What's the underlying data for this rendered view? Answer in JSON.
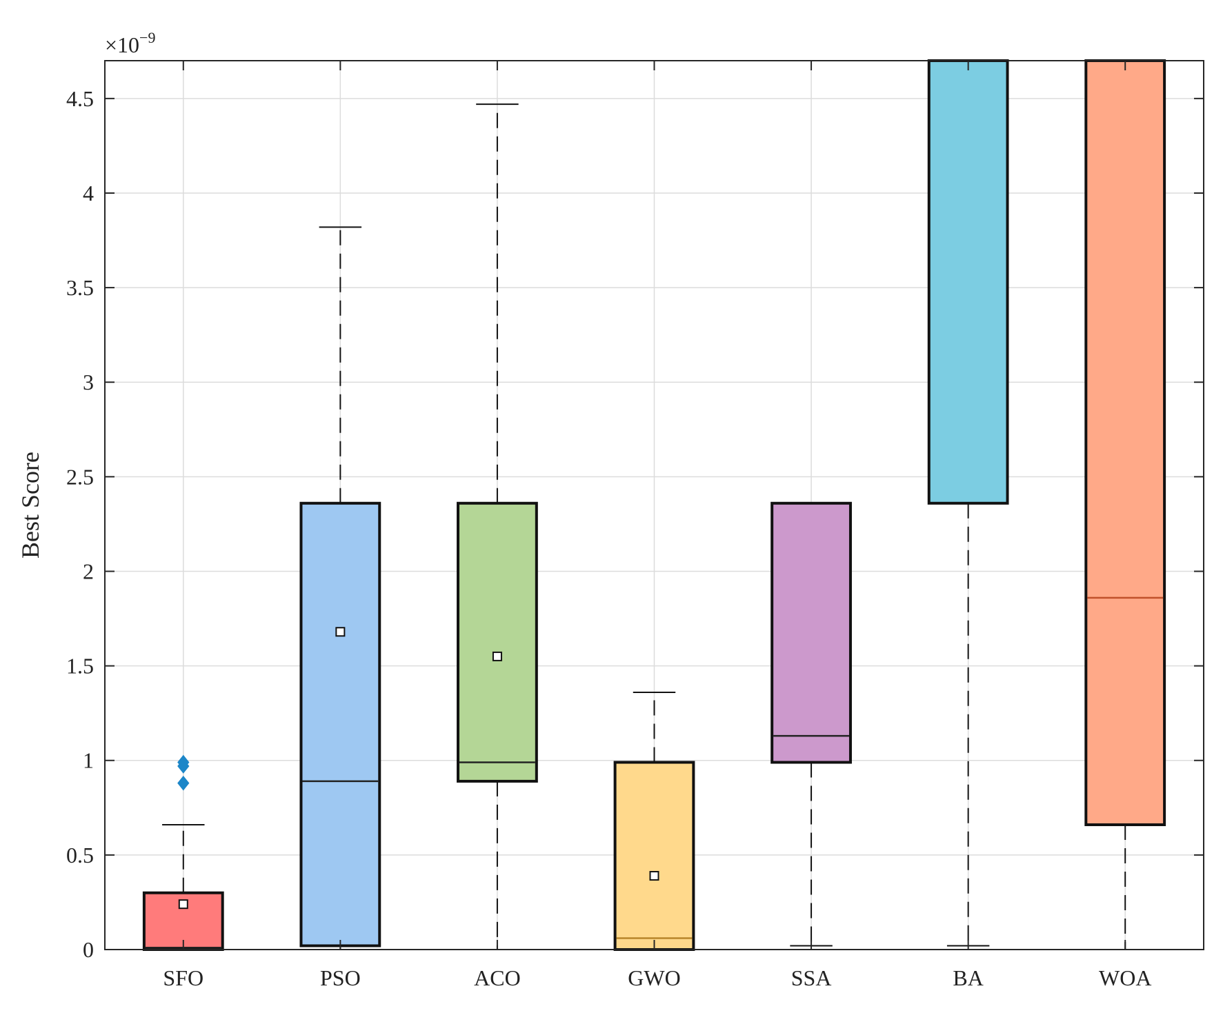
{
  "chart_data": {
    "type": "boxplot",
    "title": "",
    "xlabel": "",
    "ylabel": "Best Score",
    "y_multiplier_label": {
      "base": "×10",
      "exponent": "−9"
    },
    "ylim": [
      0,
      4.7
    ],
    "yticks": [
      0,
      0.5,
      1,
      1.5,
      2,
      2.5,
      3,
      3.5,
      4,
      4.5
    ],
    "ytick_labels": [
      "0",
      "0.5",
      "1",
      "1.5",
      "2",
      "2.5",
      "3",
      "3.5",
      "4",
      "4.5"
    ],
    "grid": true,
    "categories": [
      "SFO",
      "PSO",
      "ACO",
      "GWO",
      "SSA",
      "BA",
      "WOA"
    ],
    "boxes": [
      {
        "name": "SFO",
        "color": "#ff7b7b",
        "whisker_low": 0,
        "q1": 0,
        "median": 0.01,
        "q3": 0.3,
        "whisker_high": 0.66,
        "mean": 0.24,
        "outliers": [
          0.88,
          0.97,
          0.99
        ]
      },
      {
        "name": "PSO",
        "color": "#9ec8f2",
        "whisker_low": 0,
        "q1": 0.02,
        "median": 0.89,
        "q3": 2.36,
        "whisker_high": 3.82,
        "mean": 1.68,
        "outliers": []
      },
      {
        "name": "ACO",
        "color": "#b4d696",
        "whisker_low": 0,
        "q1": 0.89,
        "median": 0.99,
        "q3": 2.36,
        "whisker_high": 4.47,
        "mean": 1.55,
        "outliers": []
      },
      {
        "name": "GWO",
        "color": "#ffd98c",
        "whisker_low": 0,
        "q1": 0,
        "median": 0.06,
        "q3": 0.99,
        "whisker_high": 1.36,
        "mean": 0.39,
        "outliers": []
      },
      {
        "name": "SSA",
        "color": "#cc99cc",
        "whisker_low": 0.02,
        "q1": 0.99,
        "median": 1.13,
        "q3": 2.36,
        "whisker_high": null,
        "mean": null,
        "outliers": []
      },
      {
        "name": "BA",
        "color": "#7ccde2",
        "whisker_low": 0.02,
        "q1": 2.36,
        "median": null,
        "q3": 4.7,
        "whisker_high": null,
        "mean": null,
        "outliers": []
      },
      {
        "name": "WOA",
        "color": "#ffa988",
        "whisker_low": 0,
        "q1": 0.66,
        "median": 1.86,
        "q3": 4.7,
        "whisker_high": null,
        "mean": null,
        "outliers": []
      }
    ],
    "outlier_color": "#1c86c8"
  }
}
